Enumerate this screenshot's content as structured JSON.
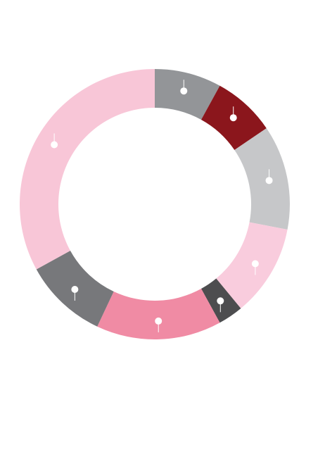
{
  "chart_data": {
    "type": "pie",
    "variant": "donut",
    "title": "",
    "labels_visible": false,
    "marker_style": "white dot with thin white leader line on each segment",
    "slices": [
      {
        "value": 8.0,
        "color": "#939598"
      },
      {
        "value": 7.5,
        "color": "#8b161c"
      },
      {
        "value": 12.5,
        "color": "#c6c7c9"
      },
      {
        "value": 11.0,
        "color": "#f9ccdd"
      },
      {
        "value": 3.0,
        "color": "#4d4d4f"
      },
      {
        "value": 15.0,
        "color": "#f08ba4"
      },
      {
        "value": 10.0,
        "color": "#77787b"
      },
      {
        "value": 33.0,
        "color": "#f8c6d7"
      }
    ]
  }
}
